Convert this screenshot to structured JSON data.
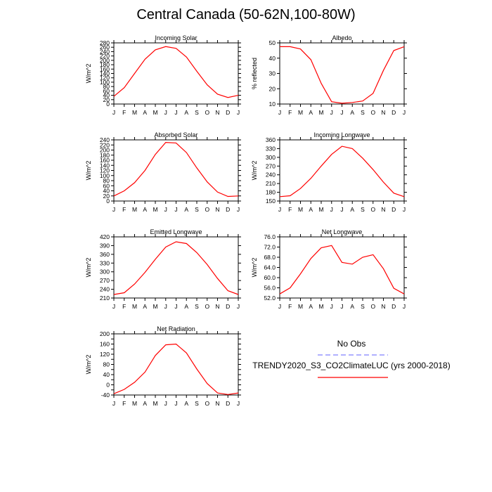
{
  "title": "Central Canada (50-62N,100-80W)",
  "legend": {
    "obs_label": "No Obs",
    "obs_color": "#8080ff",
    "model_label": "TRENDY2020_S3_CO2ClimateLUC (yrs 2000-2018)",
    "model_color": "#ff0000"
  },
  "months": [
    "J",
    "F",
    "M",
    "A",
    "M",
    "J",
    "J",
    "A",
    "S",
    "O",
    "N",
    "D",
    "J"
  ],
  "chart_data": [
    {
      "type": "line",
      "title": "Incoming Solar",
      "ylabel": "W/m^2",
      "ylim": [
        0,
        280
      ],
      "yticks": [
        "0",
        "20",
        "40",
        "60",
        "80",
        "100",
        "120",
        "140",
        "160",
        "180",
        "200",
        "220",
        "240",
        "260",
        "280"
      ],
      "series": [
        {
          "values": [
            35,
            75,
            140,
            205,
            248,
            263,
            255,
            215,
            150,
            88,
            45,
            30,
            40
          ]
        }
      ]
    },
    {
      "type": "line",
      "title": "Albedo",
      "ylabel": "% reflected",
      "ylim": [
        10,
        50
      ],
      "yticks": [
        "10",
        "20",
        "30",
        "40",
        "50"
      ],
      "series": [
        {
          "values": [
            47.5,
            47.5,
            46,
            39,
            23.5,
            11.5,
            10.5,
            11,
            12,
            17,
            32,
            45,
            47.5
          ]
        }
      ]
    },
    {
      "type": "line",
      "title": "Absorbed Solar",
      "ylabel": "W/m^2",
      "ylim": [
        0,
        240
      ],
      "yticks": [
        "0",
        "20",
        "40",
        "60",
        "80",
        "100",
        "120",
        "140",
        "160",
        "180",
        "200",
        "220",
        "240"
      ],
      "series": [
        {
          "values": [
            20,
            40,
            72,
            120,
            183,
            230,
            228,
            190,
            130,
            75,
            35,
            18,
            20
          ]
        }
      ]
    },
    {
      "type": "line",
      "title": "Incoming Longwave",
      "ylabel": "W/m^2",
      "ylim": [
        150,
        360
      ],
      "yticks": [
        "150",
        "180",
        "210",
        "240",
        "270",
        "300",
        "330",
        "360"
      ],
      "series": [
        {
          "values": [
            165,
            168,
            193,
            228,
            270,
            310,
            338,
            330,
            297,
            258,
            215,
            177,
            165
          ]
        }
      ]
    },
    {
      "type": "line",
      "title": "Emitted Longwave",
      "ylabel": "W/m^2",
      "ylim": [
        210,
        420
      ],
      "yticks": [
        "210",
        "240",
        "270",
        "300",
        "330",
        "360",
        "390",
        "420"
      ],
      "series": [
        {
          "values": [
            222,
            228,
            258,
            298,
            343,
            385,
            403,
            397,
            366,
            325,
            277,
            235,
            222
          ]
        }
      ]
    },
    {
      "type": "line",
      "title": "Net Longwave",
      "ylabel": "W/m^2",
      "ylim": [
        52,
        76
      ],
      "yticks": [
        "52.0",
        "56.0",
        "60.0",
        "64.0",
        "68.0",
        "72.0",
        "76.0"
      ],
      "series": [
        {
          "values": [
            53.6,
            56,
            61.5,
            67.5,
            71.7,
            72.6,
            66,
            65.3,
            68,
            69,
            63.5,
            55.8,
            53.6
          ]
        }
      ]
    },
    {
      "type": "line",
      "title": "Net Radiation",
      "ylabel": "W/m^2",
      "ylim": [
        -40,
        200
      ],
      "yticks": [
        "-40",
        "-20",
        "0",
        "20",
        "40",
        "60",
        "80",
        "100",
        "120",
        "140",
        "160",
        "180",
        "200"
      ],
      "yticklabels": [
        "-40",
        "0",
        "40",
        "80",
        "120",
        "160",
        "200"
      ],
      "series": [
        {
          "values": [
            -35,
            -18,
            10,
            50,
            115,
            157,
            160,
            125,
            62,
            5,
            -32,
            -38,
            -32
          ]
        }
      ]
    }
  ]
}
